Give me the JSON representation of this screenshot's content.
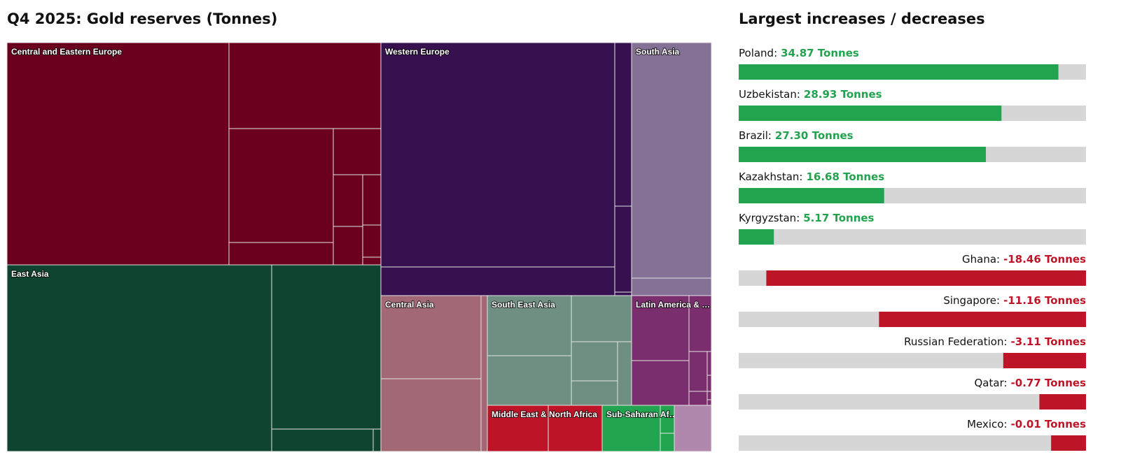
{
  "treemap": {
    "type": "treemap",
    "title": "Q4 2025: Gold reserves (Tonnes)",
    "regions": [
      {
        "name": "Central and Eastern Europe",
        "color": "#6a001e"
      },
      {
        "name": "East Asia",
        "color": "#0f4430"
      },
      {
        "name": "Western Europe",
        "color": "#36104f"
      },
      {
        "name": "South Asia",
        "color": "#857096"
      },
      {
        "name": "Central Asia",
        "color": "#a26875"
      },
      {
        "name": "South East Asia",
        "color": "#6e8f82"
      },
      {
        "name": "Latin America & …",
        "color": "#7b2e6d"
      },
      {
        "name": "Middle East & North Africa",
        "color": "#be1428"
      },
      {
        "name": "Sub-Saharan Af…",
        "color": "#22a34f"
      },
      {
        "name": null,
        "color": "#b088ad"
      }
    ]
  },
  "changes": {
    "type": "bar",
    "title": "Largest increases / decreases",
    "track_color": "#d6d6d6",
    "increases": {
      "color": "#22a34f",
      "xlim": [
        1.5,
        37.75
      ],
      "names": [
        "Poland:",
        "Uzbekistan:",
        "Brazil:",
        "Kazakhstan:",
        "Kyrgyzstan:"
      ],
      "values": [
        34.87,
        28.93,
        27.3,
        16.68,
        5.17
      ],
      "value_labels": [
        "34.87 Tonnes",
        "28.93 Tonnes",
        "27.30 Tonnes",
        "16.68 Tonnes",
        "5.17 Tonnes"
      ]
    },
    "decreases": {
      "color": "#be1428",
      "xlim": [
        -20.25,
        2.25
      ],
      "names": [
        "Ghana:",
        "Singapore:",
        "Russian Federation:",
        "Qatar:",
        "Mexico:"
      ],
      "values": [
        -18.46,
        -11.16,
        -3.11,
        -0.77,
        -0.01
      ],
      "value_labels": [
        "-18.46 Tonnes",
        "-11.16 Tonnes",
        "-3.11 Tonnes",
        "-0.77 Tonnes",
        "-0.01 Tonnes"
      ]
    }
  }
}
